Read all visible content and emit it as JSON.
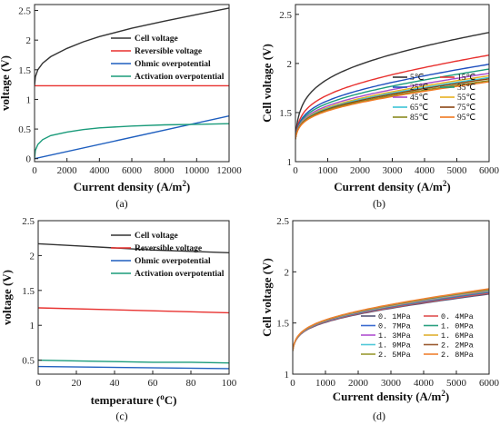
{
  "chart_data": [
    {
      "id": "a",
      "type": "line",
      "caption": "(a)",
      "xlabel": "Current density (A/m",
      "xlabel_sup": "2",
      "xlabel_end": ")",
      "ylabel": "voltage (V)",
      "xlim": [
        0,
        12000
      ],
      "ylim": [
        -0.05,
        2.6
      ],
      "xticks": [
        0,
        2000,
        4000,
        6000,
        8000,
        10000,
        12000
      ],
      "yticks": [
        0.0,
        0.5,
        1.0,
        1.5,
        2.0,
        2.5
      ],
      "legend_position": "top-right",
      "series": [
        {
          "name": "Cell voltage",
          "color": "#333333",
          "x": [
            0,
            50,
            200,
            500,
            1000,
            2000,
            3000,
            4000,
            6000,
            8000,
            10000,
            12000
          ],
          "y": [
            1.23,
            1.38,
            1.5,
            1.61,
            1.72,
            1.86,
            1.97,
            2.06,
            2.2,
            2.32,
            2.43,
            2.54
          ]
        },
        {
          "name": "Reversible voltage",
          "color": "#e8312f",
          "x": [
            0,
            12000
          ],
          "y": [
            1.23,
            1.23
          ]
        },
        {
          "name": "Ohmic overpotential",
          "color": "#1f5fbf",
          "x": [
            0,
            12000
          ],
          "y": [
            0.0,
            0.72
          ]
        },
        {
          "name": "Activation overpotential",
          "color": "#1a9b7a",
          "x": [
            0,
            50,
            200,
            500,
            1000,
            2000,
            3000,
            4000,
            6000,
            8000,
            10000,
            12000
          ],
          "y": [
            0.0,
            0.14,
            0.24,
            0.32,
            0.39,
            0.45,
            0.49,
            0.52,
            0.55,
            0.57,
            0.58,
            0.59
          ]
        }
      ]
    },
    {
      "id": "b",
      "type": "line",
      "caption": "(b)",
      "xlabel": "Current density (A/m",
      "xlabel_sup": "2",
      "xlabel_end": ")",
      "ylabel": "Cell voltage (V)",
      "xlim": [
        0,
        6000
      ],
      "ylim": [
        1.0,
        2.6
      ],
      "xticks": [
        0,
        1000,
        2000,
        3000,
        4000,
        5000,
        6000
      ],
      "yticks": [
        1.0,
        1.5,
        2.0,
        2.5
      ],
      "legend_position": "bottom-right",
      "series": [
        {
          "name": "5℃",
          "color": "#333333",
          "base": 1.23,
          "a": 0.7,
          "b": 0.36
        },
        {
          "name": "15℃",
          "color": "#e8312f",
          "base": 1.23,
          "a": 0.5,
          "b": 0.39
        },
        {
          "name": "25℃",
          "color": "#1f4fbf",
          "base": 1.23,
          "a": 0.43,
          "b": 0.38
        },
        {
          "name": "35℃",
          "color": "#1a9b7a",
          "base": 1.23,
          "a": 0.4,
          "b": 0.36
        },
        {
          "name": "45℃",
          "color": "#a64ac9",
          "base": 1.23,
          "a": 0.37,
          "b": 0.35
        },
        {
          "name": "55℃",
          "color": "#e8b020",
          "base": 1.23,
          "a": 0.35,
          "b": 0.35
        },
        {
          "name": "65℃",
          "color": "#3cc4d6",
          "base": 1.23,
          "a": 0.34,
          "b": 0.34
        },
        {
          "name": "75℃",
          "color": "#8b4513",
          "base": 1.23,
          "a": 0.33,
          "b": 0.34
        },
        {
          "name": "85℃",
          "color": "#8a8a20",
          "base": 1.23,
          "a": 0.32,
          "b": 0.33
        },
        {
          "name": "95℃",
          "color": "#f07820",
          "base": 1.23,
          "a": 0.31,
          "b": 0.33
        }
      ]
    },
    {
      "id": "c",
      "type": "line",
      "caption": "(c)",
      "xlabel": "temperature (",
      "xlabel_sup": "o",
      "xlabel_end": "C)",
      "ylabel": "voltage (V)",
      "xlim": [
        0,
        100
      ],
      "ylim": [
        0.3,
        2.5
      ],
      "xticks": [
        0,
        20,
        40,
        60,
        80,
        100
      ],
      "yticks": [
        0.5,
        1.0,
        1.5,
        2.0,
        2.5
      ],
      "legend_position": "top-right",
      "series": [
        {
          "name": "Cell voltage",
          "color": "#333333",
          "x": [
            0,
            20,
            40,
            60,
            80,
            100
          ],
          "y": [
            2.17,
            2.14,
            2.11,
            2.08,
            2.06,
            2.04
          ]
        },
        {
          "name": "Reversible voltage",
          "color": "#e8312f",
          "x": [
            0,
            100
          ],
          "y": [
            1.25,
            1.18
          ]
        },
        {
          "name": "Ohmic overpotential",
          "color": "#1f5fbf",
          "x": [
            0,
            100
          ],
          "y": [
            0.41,
            0.38
          ]
        },
        {
          "name": "Activation overpotential",
          "color": "#1a9b7a",
          "x": [
            0,
            20,
            40,
            60,
            80,
            100
          ],
          "y": [
            0.5,
            0.49,
            0.48,
            0.47,
            0.47,
            0.46
          ]
        }
      ]
    },
    {
      "id": "d",
      "type": "line",
      "caption": "(d)",
      "xlabel": "Current density (A/m",
      "xlabel_sup": "2",
      "xlabel_end": ")",
      "ylabel": "Cell voltage (V)",
      "xlim": [
        0,
        6000
      ],
      "ylim": [
        1.0,
        2.5
      ],
      "xticks": [
        0,
        1000,
        2000,
        3000,
        4000,
        5000,
        6000
      ],
      "yticks": [
        1.0,
        1.5,
        2.0,
        2.5
      ],
      "legend_position": "bottom-right",
      "series": [
        {
          "name": "0. 1MPa",
          "color": "#555577",
          "base": 1.23,
          "a": 0.3,
          "b": 0.3
        },
        {
          "name": "0. 4MPa",
          "color": "#e05050",
          "base": 1.23,
          "a": 0.305,
          "b": 0.305
        },
        {
          "name": "0. 7MPa",
          "color": "#3a6ad0",
          "base": 1.23,
          "a": 0.31,
          "b": 0.31
        },
        {
          "name": "1. 0MPa",
          "color": "#2aa080",
          "base": 1.23,
          "a": 0.312,
          "b": 0.314
        },
        {
          "name": "1. 3MPa",
          "color": "#b050d0",
          "base": 1.23,
          "a": 0.315,
          "b": 0.318
        },
        {
          "name": "1. 6MPa",
          "color": "#e0b030",
          "base": 1.23,
          "a": 0.318,
          "b": 0.321
        },
        {
          "name": "1. 9MPa",
          "color": "#50c8d8",
          "base": 1.23,
          "a": 0.32,
          "b": 0.324
        },
        {
          "name": "2. 2MPa",
          "color": "#9a5a30",
          "base": 1.23,
          "a": 0.322,
          "b": 0.327
        },
        {
          "name": "2. 5MPa",
          "color": "#9a9a30",
          "base": 1.23,
          "a": 0.324,
          "b": 0.33
        },
        {
          "name": "2. 8MPa",
          "color": "#f08030",
          "base": 1.23,
          "a": 0.326,
          "b": 0.333
        }
      ]
    }
  ]
}
